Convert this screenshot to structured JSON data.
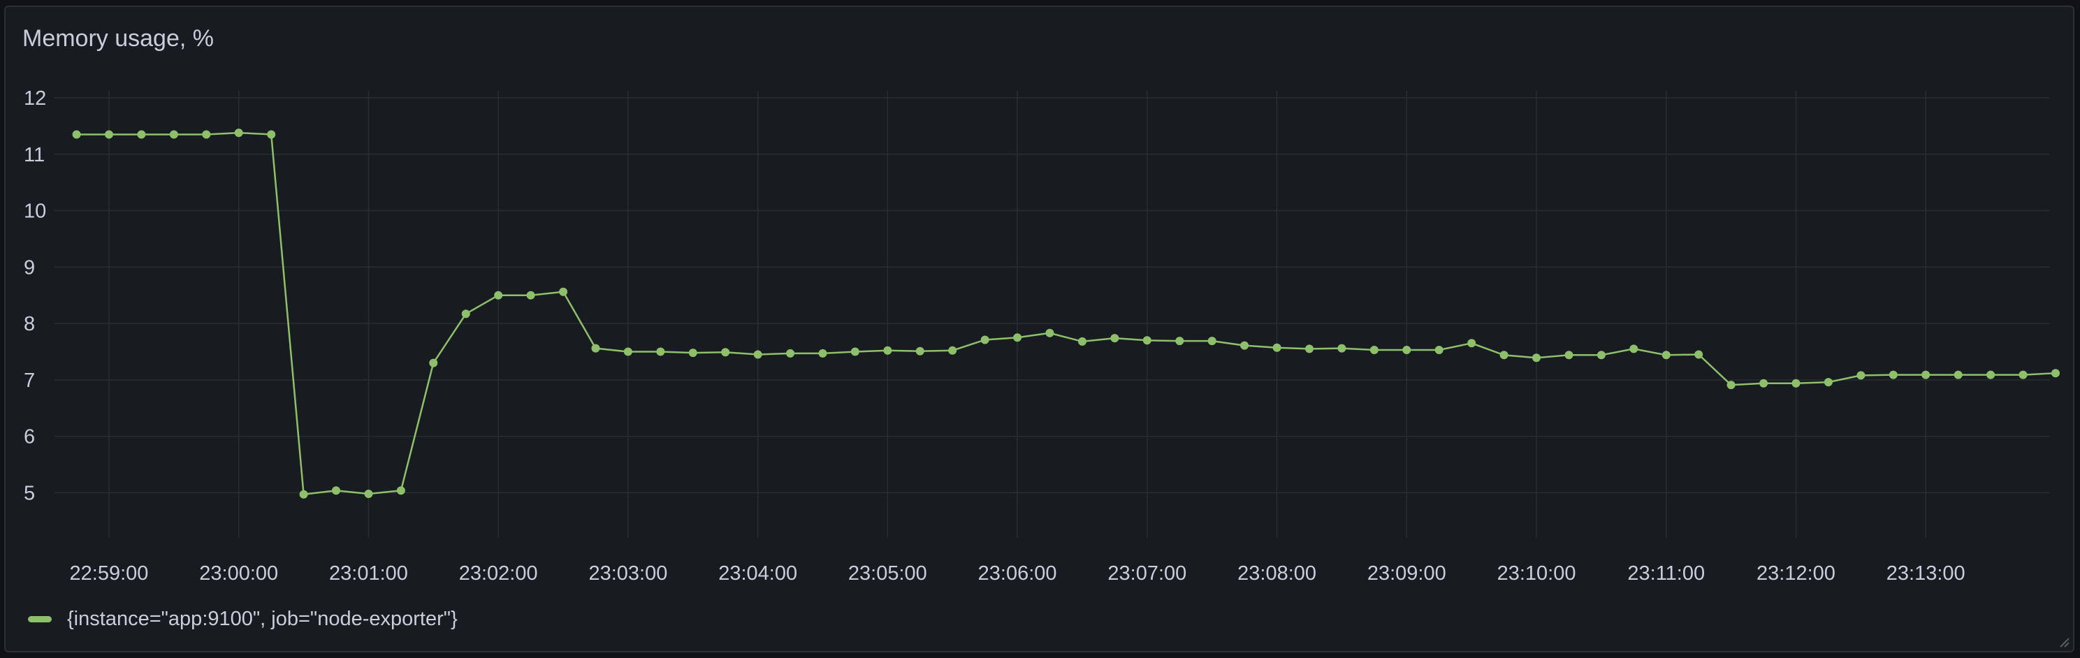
{
  "panel": {
    "title": "Memory usage, %",
    "legend_label": "{instance=\"app:9100\", job=\"node-exporter\"}",
    "series_color": "#8ec06b",
    "background": "#181b1f",
    "grid_color": "#2a2d33",
    "text_color": "#ccccdc"
  },
  "icons": {
    "resize": "resize-handle-icon"
  },
  "chart_data": {
    "type": "line",
    "title": "Memory usage, %",
    "xlabel": "",
    "ylabel": "",
    "ylim": [
      4.2,
      12
    ],
    "yticks": [
      5,
      6,
      7,
      8,
      9,
      10,
      11,
      12
    ],
    "xticks": [
      "22:59:00",
      "23:00:00",
      "23:01:00",
      "23:02:00",
      "23:03:00",
      "23:04:00",
      "23:05:00",
      "23:06:00",
      "23:07:00",
      "23:08:00",
      "23:09:00",
      "23:10:00",
      "23:11:00",
      "23:12:00",
      "23:13:00"
    ],
    "x_start": "22:59:00",
    "x_end": "23:13:50",
    "x_step_seconds": 15,
    "grid": true,
    "legend_position": "bottom-left",
    "x": [
      "22:58:45",
      "22:59:00",
      "22:59:15",
      "22:59:30",
      "22:59:45",
      "23:00:00",
      "23:00:15",
      "23:00:30",
      "23:00:45",
      "23:01:00",
      "23:01:15",
      "23:01:30",
      "23:01:45",
      "23:02:00",
      "23:02:15",
      "23:02:30",
      "23:02:45",
      "23:03:00",
      "23:03:15",
      "23:03:30",
      "23:03:45",
      "23:04:00",
      "23:04:15",
      "23:04:30",
      "23:04:45",
      "23:05:00",
      "23:05:15",
      "23:05:30",
      "23:05:45",
      "23:06:00",
      "23:06:15",
      "23:06:30",
      "23:06:45",
      "23:07:00",
      "23:07:15",
      "23:07:30",
      "23:07:45",
      "23:08:00",
      "23:08:15",
      "23:08:30",
      "23:08:45",
      "23:09:00",
      "23:09:15",
      "23:09:30",
      "23:09:45",
      "23:10:00",
      "23:10:15",
      "23:10:30",
      "23:10:45",
      "23:11:00",
      "23:11:15",
      "23:11:30",
      "23:11:45",
      "23:12:00",
      "23:12:15",
      "23:12:30",
      "23:12:45",
      "23:13:00",
      "23:13:15",
      "23:13:30",
      "23:13:45",
      "23:14:00"
    ],
    "series": [
      {
        "name": "{instance=\"app:9100\", job=\"node-exporter\"}",
        "values": [
          11.35,
          11.35,
          11.35,
          11.35,
          11.35,
          11.38,
          11.35,
          4.97,
          5.04,
          4.98,
          5.04,
          7.3,
          8.17,
          8.5,
          8.5,
          8.56,
          7.56,
          7.5,
          7.5,
          7.48,
          7.49,
          7.45,
          7.47,
          7.47,
          7.5,
          7.52,
          7.51,
          7.52,
          7.71,
          7.75,
          7.83,
          7.68,
          7.74,
          7.7,
          7.69,
          7.69,
          7.61,
          7.57,
          7.55,
          7.56,
          7.53,
          7.53,
          7.53,
          7.65,
          7.44,
          7.39,
          7.44,
          7.44,
          7.55,
          7.44,
          7.45,
          6.91,
          6.94,
          6.94,
          6.96,
          7.08,
          7.09,
          7.09,
          7.09,
          7.09,
          7.09,
          7.12
        ]
      }
    ]
  }
}
